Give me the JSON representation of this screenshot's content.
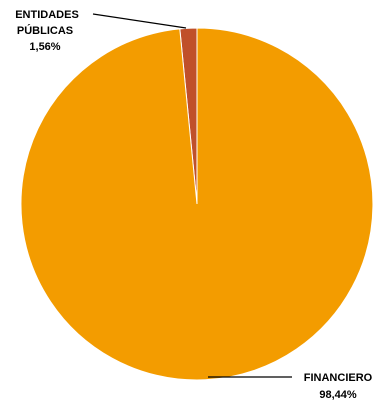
{
  "chart_data": {
    "type": "pie",
    "title": "",
    "legend": "none",
    "slices": [
      {
        "name": "ENTIDADES PÚBLICAS",
        "label_line1": "ENTIDADES",
        "label_line2": "PÚBLICAS",
        "value": 1.56,
        "value_label": "1,56%",
        "color": "#c0502a"
      },
      {
        "name": "FINANCIERO",
        "label_line1": "FINANCIERO",
        "value": 98.44,
        "value_label": "98,44%",
        "color": "#f39c00"
      }
    ]
  }
}
